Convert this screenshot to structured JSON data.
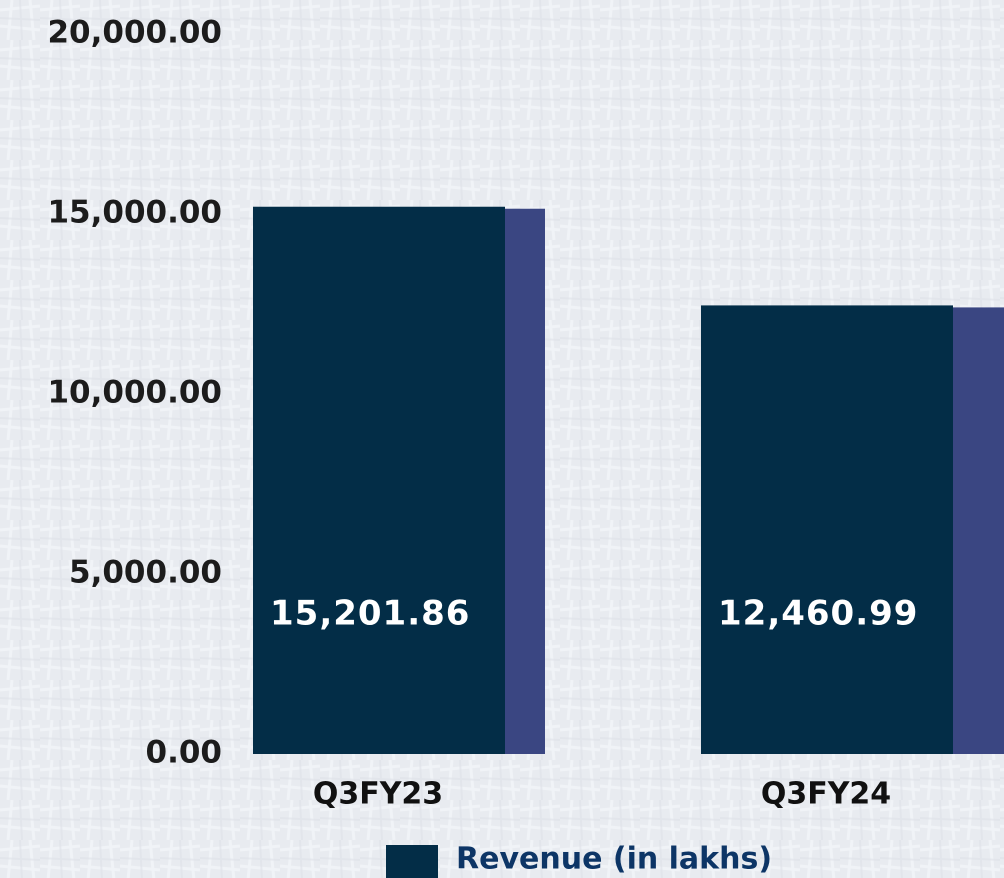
{
  "chart_data": {
    "type": "bar",
    "categories": [
      "Q3FY23",
      "Q3FY24"
    ],
    "series": [
      {
        "name": "Revenue (in lakhs)",
        "color": "#032d47",
        "side_color": "#3a4682",
        "values": [
          15201.86,
          12460.99
        ],
        "value_labels": [
          "15,201.86",
          "12,460.99"
        ]
      }
    ],
    "ylim": [
      0,
      20000
    ],
    "yticks": [
      {
        "value": 0,
        "label": "0.00"
      },
      {
        "value": 5000,
        "label": "5,000.00"
      },
      {
        "value": 10000,
        "label": "10,000.00"
      },
      {
        "value": 15000,
        "label": "15,000.00"
      },
      {
        "value": 20000,
        "label": "20,000.00"
      }
    ],
    "grid": false,
    "legend": "bottom"
  }
}
